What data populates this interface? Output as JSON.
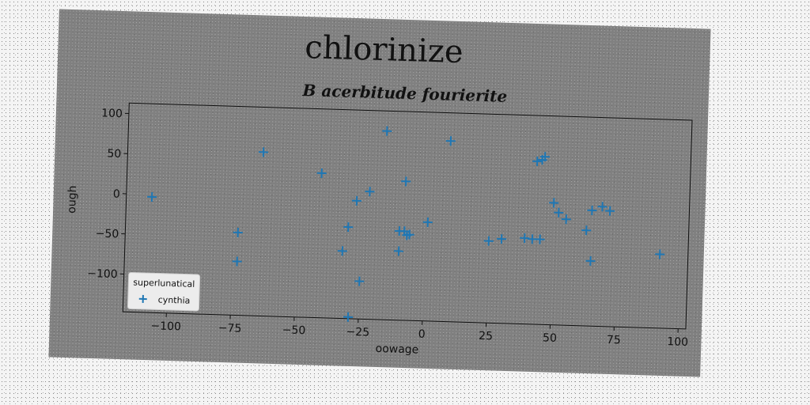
{
  "figure_title": "chlorinize",
  "chart_data": {
    "type": "scatter",
    "title": "B acerbitude fourierite",
    "xlabel": "oowage",
    "ylabel": "ough",
    "xlim": [
      -117,
      103
    ],
    "ylim": [
      -147,
      113
    ],
    "xticks": [
      -100,
      -75,
      -50,
      -25,
      0,
      25,
      50,
      75,
      100
    ],
    "yticks": [
      -100,
      -50,
      0,
      50,
      100
    ],
    "xtick_labels": [
      "−100",
      "−75",
      "−50",
      "−25",
      "0",
      "25",
      "50",
      "75",
      "100"
    ],
    "ytick_labels": [
      "−100",
      "−50",
      "0",
      "50",
      "100"
    ],
    "grid": false,
    "legend": {
      "title": "superlunatical",
      "placement": "lower-left"
    },
    "marker": "+",
    "series": [
      {
        "name": "cynthia",
        "color": "#1f77b4",
        "x": [
          -107,
          -73,
          -73,
          -64,
          -41,
          -32,
          -29,
          -25,
          -27,
          -30,
          -22,
          -16,
          -10,
          -10,
          -8,
          -8,
          -6,
          -7,
          1,
          9,
          25,
          30,
          39,
          42,
          45,
          43,
          45,
          46,
          50,
          52,
          55,
          63,
          65,
          65,
          69,
          72,
          92
        ],
        "y": [
          -3,
          -44,
          -80,
          57,
          33,
          -63,
          -145,
          -100,
          0,
          -33,
          12,
          88,
          -61,
          -36,
          26,
          -36,
          -40,
          -41,
          -24,
          78,
          -45,
          -42,
          -40,
          -41,
          -41,
          56,
          58,
          62,
          5,
          -7,
          -15,
          -28,
          -3,
          -66,
          2,
          -3,
          -55
        ]
      }
    ]
  }
}
